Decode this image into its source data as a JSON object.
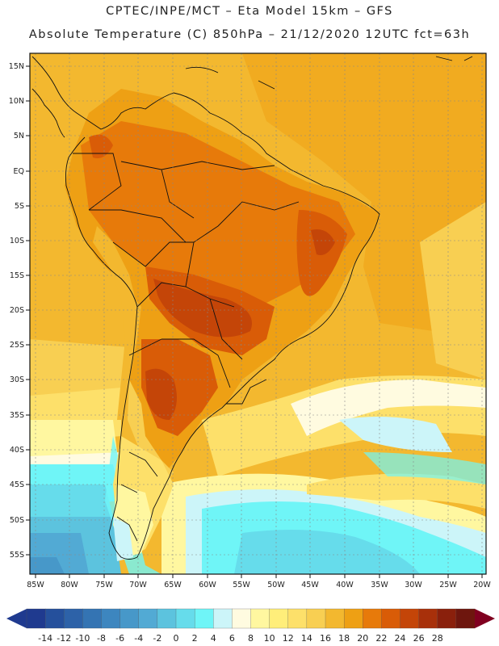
{
  "header": {
    "line1": "CPTEC/INPE/MCT –  Eta Model 15km – GFS",
    "line2": "Absolute Temperature (C) 850hPa – 21/12/2020 12UTC fct=63h"
  },
  "map": {
    "lat_labels": [
      "15N",
      "10N",
      "5N",
      "EQ",
      "5S",
      "10S",
      "15S",
      "20S",
      "25S",
      "30S",
      "35S",
      "40S",
      "45S",
      "50S",
      "55S"
    ],
    "lon_labels": [
      "85W",
      "80W",
      "75W",
      "70W",
      "65W",
      "60W",
      "55W",
      "50W",
      "45W",
      "40W",
      "35W",
      "30W",
      "25W",
      "20W"
    ]
  },
  "colorbar": {
    "labels": [
      "-14",
      "-12",
      "-10",
      "-8",
      "-6",
      "-4",
      "-2",
      "0",
      "2",
      "4",
      "6",
      "8",
      "10",
      "12",
      "14",
      "16",
      "18",
      "20",
      "22",
      "24",
      "26",
      "28"
    ],
    "colors": [
      "#1f3a8f",
      "#25509c",
      "#2d62a8",
      "#3474b3",
      "#3d86bf",
      "#4798c9",
      "#52aad4",
      "#5cc3de",
      "#66dceb",
      "#6ff5f7",
      "#ccf5f9",
      "#fffbe0",
      "#fff7a0",
      "#ffee7a",
      "#fde06a",
      "#f8cf52",
      "#f3b82f",
      "#eea014",
      "#e77a0a",
      "#d95c07",
      "#c44508",
      "#a8300a",
      "#8a200c",
      "#6e160e"
    ],
    "min_arrow_color": "#1f3a8f",
    "max_arrow_color": "#800020"
  }
}
